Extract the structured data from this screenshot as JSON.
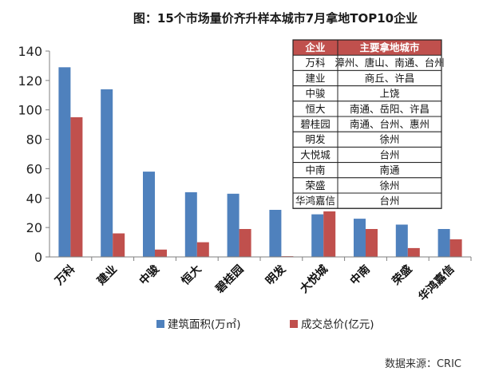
{
  "chart_data": {
    "type": "bar",
    "title": "图：15个市场量价齐升样本城市7月拿地TOP10企业",
    "categories": [
      "万科",
      "建业",
      "中骏",
      "恒大",
      "碧桂园",
      "明发",
      "大悦城",
      "中南",
      "荣盛",
      "华鸿嘉信"
    ],
    "series": [
      {
        "name": "建筑面积(万㎡)",
        "color": "#4f81bd",
        "values": [
          129,
          114,
          58,
          44,
          43,
          32,
          29,
          26,
          22,
          19
        ]
      },
      {
        "name": "成交总价(亿元)",
        "color": "#c0504d",
        "values": [
          95,
          16,
          5,
          10,
          19,
          0.5,
          31,
          19,
          6,
          12
        ]
      }
    ],
    "xlabel": "",
    "ylabel": "",
    "ylim": [
      0,
      140
    ],
    "yticks": [
      0,
      20,
      40,
      60,
      80,
      100,
      120,
      140
    ],
    "grid": false,
    "legend_position": "bottom"
  },
  "table": {
    "header_color": "#c0504d",
    "headers": [
      "企业",
      "主要拿地城市"
    ],
    "rows": [
      [
        "万科",
        "漳州、唐山、南通、台州"
      ],
      [
        "建业",
        "商丘、许昌"
      ],
      [
        "中骏",
        "上饶"
      ],
      [
        "恒大",
        "南通、岳阳、许昌"
      ],
      [
        "碧桂园",
        "南通、台州、惠州"
      ],
      [
        "明发",
        "徐州"
      ],
      [
        "大悦城",
        "台州"
      ],
      [
        "中南",
        "南通"
      ],
      [
        "荣盛",
        "徐州"
      ],
      [
        "华鸿嘉信",
        "台州"
      ]
    ]
  },
  "source": "数据来源：CRIC"
}
